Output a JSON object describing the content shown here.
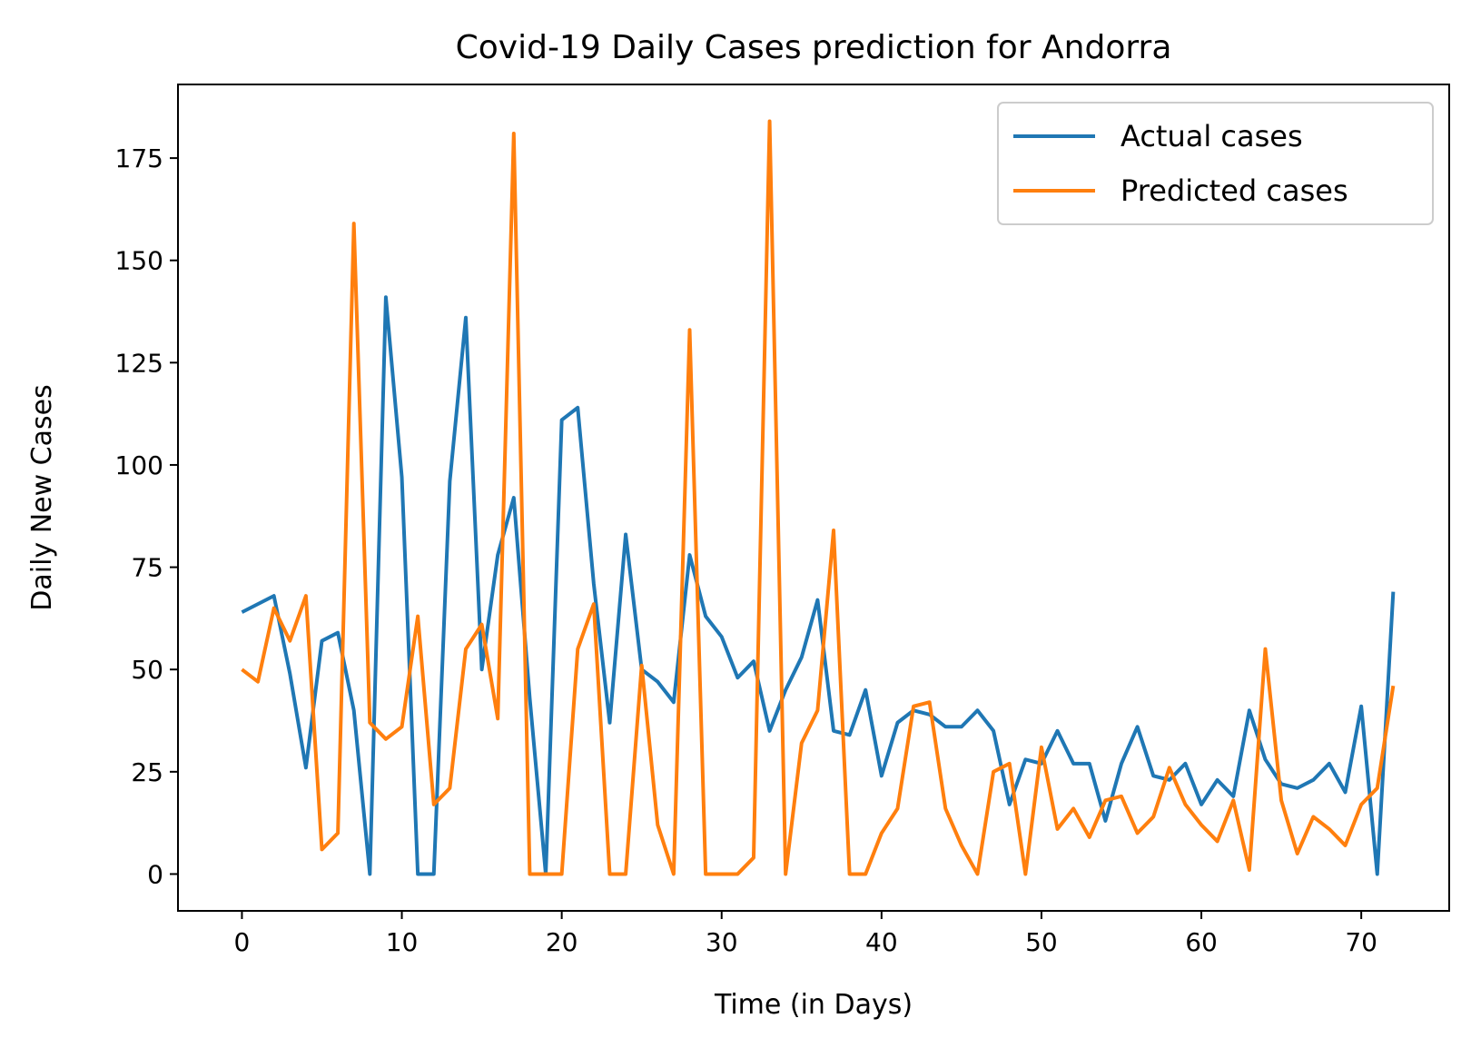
{
  "chart_data": {
    "type": "line",
    "title": "Covid-19 Daily Cases prediction for Andorra",
    "xlabel": "Time (in Days)",
    "ylabel": "Daily New Cases",
    "xlim": [
      -4,
      75.5
    ],
    "ylim": [
      -9,
      193
    ],
    "xticks": [
      0,
      10,
      20,
      30,
      40,
      50,
      60,
      70
    ],
    "yticks": [
      0,
      25,
      50,
      75,
      100,
      125,
      150,
      175
    ],
    "grid": false,
    "legend_position": "top-right",
    "series": [
      {
        "name": "Actual cases",
        "color": "#1f77b4",
        "values": [
          64,
          66,
          68,
          49,
          26,
          57,
          59,
          40,
          0,
          141,
          97,
          0,
          0,
          96,
          136,
          50,
          78,
          92,
          43,
          0,
          111,
          114,
          71,
          37,
          83,
          50,
          47,
          42,
          78,
          63,
          58,
          48,
          52,
          35,
          45,
          53,
          67,
          35,
          34,
          45,
          24,
          37,
          40,
          39,
          36,
          36,
          40,
          35,
          17,
          28,
          27,
          35,
          27,
          27,
          13,
          27,
          36,
          24,
          23,
          27,
          17,
          23,
          19,
          40,
          28,
          22,
          21,
          23,
          27,
          20,
          41,
          0,
          69
        ]
      },
      {
        "name": "Predicted cases",
        "color": "#ff7f0e",
        "values": [
          50,
          47,
          65,
          57,
          68,
          6,
          10,
          159,
          37,
          33,
          36,
          63,
          17,
          21,
          55,
          61,
          38,
          181,
          0,
          0,
          0,
          55,
          66,
          0,
          0,
          51,
          12,
          0,
          133,
          0,
          0,
          0,
          4,
          184,
          0,
          32,
          40,
          84,
          0,
          0,
          10,
          16,
          41,
          42,
          16,
          7,
          0,
          25,
          27,
          0,
          31,
          11,
          16,
          9,
          18,
          19,
          10,
          14,
          26,
          17,
          12,
          8,
          18,
          1,
          55,
          18,
          5,
          14,
          11,
          7,
          17,
          21,
          46
        ]
      }
    ]
  }
}
